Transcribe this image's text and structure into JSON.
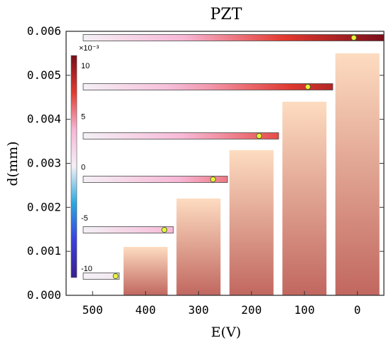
{
  "chart_data": {
    "type": "bar",
    "title": "PZT",
    "xlabel": "E(V)",
    "ylabel": "d(mm)",
    "categories": [
      "500",
      "400",
      "300",
      "200",
      "100",
      "0"
    ],
    "values": [
      0,
      0.0011,
      0.0022,
      0.0033,
      0.0044,
      0.0055
    ],
    "ylim": [
      0,
      0.006
    ],
    "yticks": [
      "0.000",
      "0.001",
      "0.002",
      "0.003",
      "0.004",
      "0.005",
      "0.006"
    ],
    "grid": false,
    "bar_gradient": {
      "top": "#fddcc0",
      "bottom": "#c16760"
    },
    "colorbar": {
      "multiplier": "×10⁻³",
      "ticks": [
        "10",
        "5",
        "0",
        "-5",
        "-10"
      ],
      "range": [
        -10,
        10
      ],
      "colors": [
        "#7a0e1a",
        "#e33a30",
        "#f7b6d5",
        "#f4f0f6",
        "#29a8e0",
        "#3b3fe0",
        "#3a1f8f"
      ]
    },
    "beams": [
      {
        "category": "500",
        "length_fraction": 0.12,
        "max_value": 0.5
      },
      {
        "category": "400",
        "length_fraction": 0.3,
        "max_value": 3.2
      },
      {
        "category": "300",
        "length_fraction": 0.48,
        "max_value": 5.0
      },
      {
        "category": "200",
        "length_fraction": 0.65,
        "max_value": 6.2
      },
      {
        "category": "100",
        "length_fraction": 0.83,
        "max_value": 8.2
      },
      {
        "category": "0",
        "length_fraction": 1.0,
        "max_value": 10.0
      }
    ]
  }
}
